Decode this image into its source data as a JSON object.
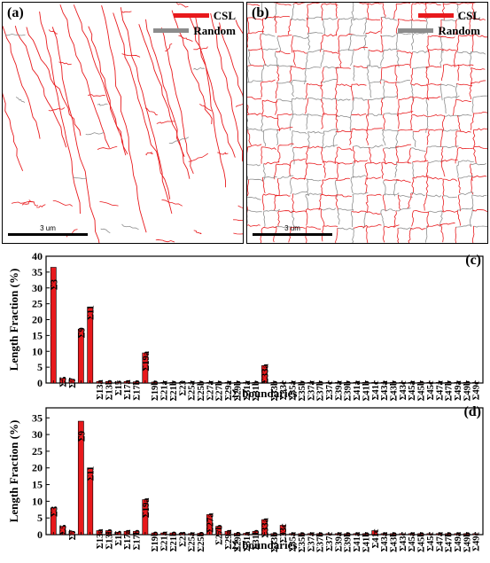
{
  "maps": [
    {
      "label": "(a)",
      "legend": [
        {
          "name": "CSL",
          "color": "#e8191c"
        },
        {
          "name": "Random",
          "color": "#8c8c8c"
        }
      ],
      "scalebar": "3 um"
    },
    {
      "label": "(b)",
      "legend": [
        {
          "name": "CSL",
          "color": "#e8191c"
        },
        {
          "name": "Random",
          "color": "#8c8c8c"
        }
      ],
      "scalebar": "3 um"
    }
  ],
  "chart_data": [
    {
      "panel": "(c)",
      "type": "bar",
      "xlabel": "Σ boundaries",
      "ylabel": "Length Fraction (%)",
      "ylim": [
        0,
        40
      ],
      "yticks": [
        0,
        5,
        10,
        15,
        20,
        25,
        30,
        35,
        40
      ],
      "categories": [
        "Σ3",
        "Σ5",
        "Σ7",
        "Σ9",
        "Σ11",
        "Σ13a",
        "Σ13b",
        "Σ15",
        "Σ17a",
        "Σ17b",
        "Σ19a",
        "Σ19b",
        "Σ21a",
        "Σ21b",
        "Σ23",
        "Σ25a",
        "Σ25b",
        "Σ27a",
        "Σ27b",
        "Σ29a",
        "Σ29b",
        "Σ31a",
        "Σ31b",
        "Σ33a",
        "Σ33b",
        "Σ33c",
        "Σ35a",
        "Σ35b",
        "Σ37a",
        "Σ37b",
        "Σ37c",
        "Σ39a",
        "Σ39b",
        "Σ41a",
        "Σ41b",
        "Σ41c",
        "Σ43a",
        "Σ43b",
        "Σ43c",
        "Σ45a",
        "Σ45b",
        "Σ45c",
        "Σ47a",
        "Σ47b",
        "Σ49a",
        "Σ49b",
        "Σ49c"
      ],
      "values": [
        36.5,
        1.5,
        1.2,
        17,
        24,
        0.5,
        0.5,
        0.3,
        0.5,
        0.4,
        9.5,
        0.3,
        0.2,
        0.2,
        0.2,
        0.2,
        0.2,
        0.2,
        0.2,
        0.2,
        0.2,
        0.2,
        0.2,
        5.5,
        0.2,
        0.2,
        0.2,
        0.2,
        0.2,
        0.2,
        0.2,
        0.2,
        0.2,
        0.2,
        0.2,
        0.2,
        0.2,
        0.2,
        0.2,
        0.2,
        0.2,
        0.2,
        0.2,
        0.2,
        0.2,
        0.2,
        0.2
      ],
      "bar_color": "#e8191c"
    },
    {
      "panel": "(d)",
      "type": "bar",
      "xlabel": "Σ boundaries",
      "ylabel": "Length Fraction (%)",
      "ylim": [
        0,
        38
      ],
      "yticks": [
        0,
        5,
        10,
        15,
        20,
        25,
        30,
        35
      ],
      "categories": [
        "Σ3",
        "Σ5",
        "Σ7",
        "Σ9",
        "Σ11",
        "Σ13a",
        "Σ13b",
        "Σ15",
        "Σ17a",
        "Σ17b",
        "Σ19a",
        "Σ19b",
        "Σ21a",
        "Σ21b",
        "Σ23",
        "Σ25a",
        "Σ25b",
        "Σ27a",
        "Σ27b",
        "Σ29a",
        "Σ29b",
        "Σ31a",
        "Σ31b",
        "Σ33a",
        "Σ33b",
        "Σ33c",
        "Σ35a",
        "Σ35b",
        "Σ37a",
        "Σ37b",
        "Σ37c",
        "Σ39a",
        "Σ39b",
        "Σ41a",
        "Σ41b",
        "Σ41c",
        "Σ43a",
        "Σ43b",
        "Σ43c",
        "Σ45a",
        "Σ45b",
        "Σ45c",
        "Σ47a",
        "Σ47b",
        "Σ49a",
        "Σ49b",
        "Σ49c"
      ],
      "values": [
        8,
        2.5,
        1,
        34,
        20,
        1.2,
        1.2,
        0.7,
        1,
        1,
        10.5,
        0.5,
        0.5,
        0.5,
        0.4,
        0.3,
        0.4,
        6,
        2.5,
        1,
        0.4,
        0.4,
        1,
        4.5,
        0.3,
        2.8,
        0.3,
        0.3,
        0.3,
        0.3,
        0.3,
        0.3,
        0.3,
        0.3,
        0.3,
        1.2,
        0.3,
        0.3,
        0.3,
        0.3,
        0.3,
        0.3,
        0.3,
        0.3,
        0.3,
        0.3,
        0.3
      ],
      "bar_color": "#e8191c"
    }
  ]
}
